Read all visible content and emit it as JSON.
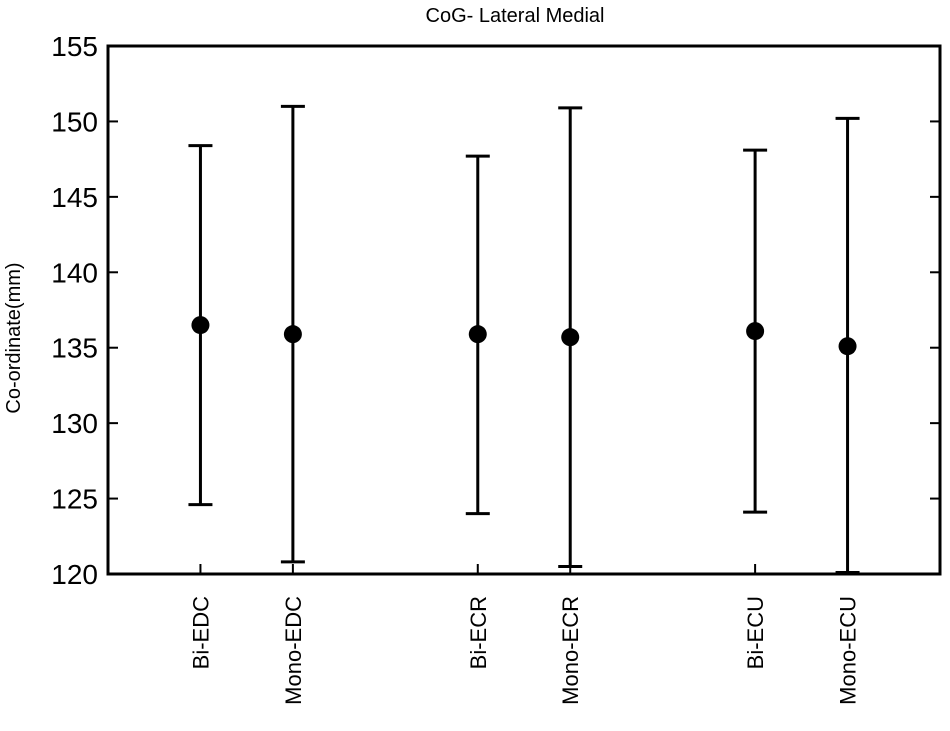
{
  "chart_data": {
    "type": "scatter",
    "title": "CoG- Lateral Medial",
    "ylabel": "Co-ordinate(mm)",
    "xlabel": "",
    "ylim": [
      120,
      155
    ],
    "yticks": [
      120,
      125,
      130,
      135,
      140,
      145,
      150,
      155
    ],
    "grid": false,
    "legend": "none",
    "marker_color": "#000000",
    "errorbar_color": "#000000",
    "categories": [
      "Bi-EDC",
      "Mono-EDC",
      "Bi-ECR",
      "Mono-ECR",
      "Bi-ECU",
      "Mono-ECU"
    ],
    "x": [
      1,
      2,
      4,
      5,
      7,
      8
    ],
    "xlim": [
      0,
      9
    ],
    "means": [
      136.5,
      135.9,
      135.9,
      135.7,
      136.1,
      135.1
    ],
    "lower": [
      124.6,
      120.8,
      124.0,
      120.5,
      124.1,
      120.1
    ],
    "upper": [
      148.4,
      151.0,
      147.7,
      150.9,
      148.1,
      150.2
    ]
  }
}
